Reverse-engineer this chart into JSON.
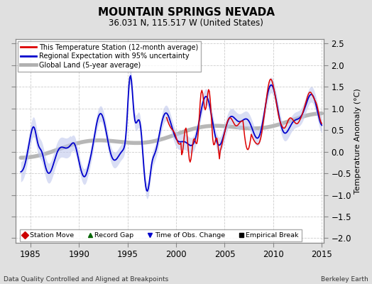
{
  "title": "MOUNTAIN SPRINGS NEVADA",
  "subtitle": "36.031 N, 115.517 W (United States)",
  "ylabel": "Temperature Anomaly (°C)",
  "xlabel_left": "Data Quality Controlled and Aligned at Breakpoints",
  "xlabel_right": "Berkeley Earth",
  "xlim": [
    1983.5,
    2015.2
  ],
  "ylim": [
    -2.1,
    2.6
  ],
  "yticks": [
    -2,
    -1.5,
    -1,
    -0.5,
    0,
    0.5,
    1,
    1.5,
    2,
    2.5
  ],
  "xticks": [
    1985,
    1990,
    1995,
    2000,
    2005,
    2010,
    2015
  ],
  "bg_color": "#e0e0e0",
  "plot_bg_color": "#ffffff",
  "grid_color": "#cccccc",
  "red_line_color": "#dd0000",
  "blue_line_color": "#0000cc",
  "blue_fill_color": "#c0c8ee",
  "gray_line_color": "#b0b0b0",
  "seed": 12345
}
